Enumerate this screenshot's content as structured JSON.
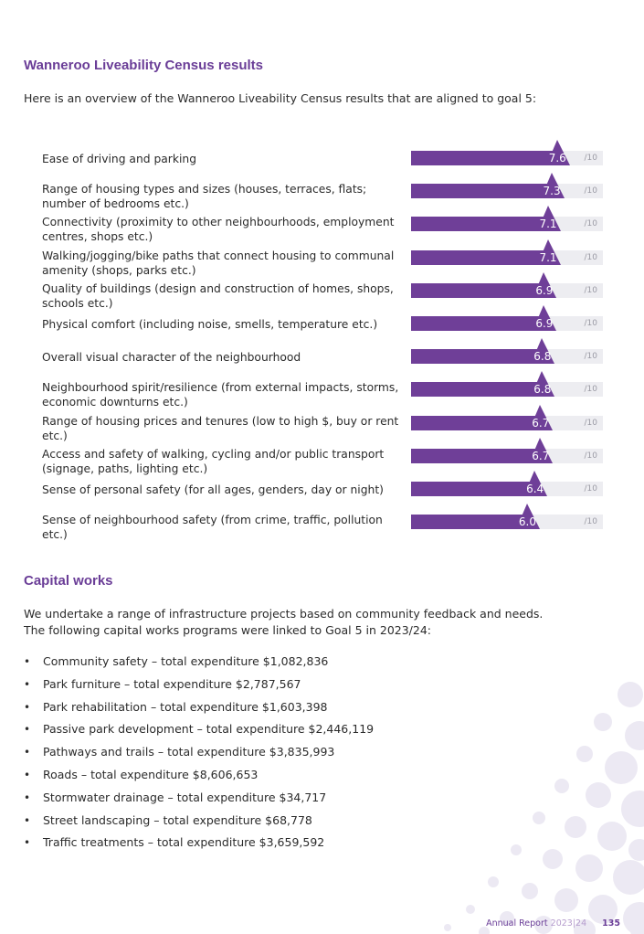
{
  "census": {
    "heading": "Wanneroo Liveability Census results",
    "intro": "Here is an overview of the Wanneroo Liveability Census results that are aligned to goal 5:",
    "max_label": "/10",
    "rows": [
      {
        "label": "Ease of driving and parking",
        "score": "7.6"
      },
      {
        "label": "Range of housing types and sizes (houses, terraces, flats; number of bedrooms etc.)",
        "score": "7.3"
      },
      {
        "label": "Connectivity (proximity to other neighbourhoods, employment centres, shops etc.)",
        "score": "7.1"
      },
      {
        "label": "Walking/jogging/bike paths that connect housing to communal amenity (shops, parks etc.)",
        "score": "7.1"
      },
      {
        "label": "Quality of buildings (design and construction of homes, shops, schools etc.)",
        "score": "6.9"
      },
      {
        "label": "Physical comfort (including noise, smells, temperature etc.)",
        "score": "6.9"
      },
      {
        "label": "Overall visual character of the neighbourhood",
        "score": "6.8"
      },
      {
        "label": "Neighbourhood spirit/resilience (from external impacts, storms, economic downturns etc.)",
        "score": "6.8"
      },
      {
        "label": "Range of housing prices and tenures (low to high $, buy or rent etc.)",
        "score": "6.7"
      },
      {
        "label": "Access and safety of walking, cycling and/or public transport (signage, paths, lighting etc.)",
        "score": "6.7"
      },
      {
        "label": "Sense of personal safety (for all ages, genders, day or night)",
        "score": "6.4"
      },
      {
        "label": "Sense of neighbourhood safety (from crime, traffic, pollution etc.)",
        "score": "6.0"
      }
    ]
  },
  "capital": {
    "heading": "Capital works",
    "intro_line1": "We undertake a range of infrastructure projects based on community feedback and needs.",
    "intro_line2": "The following capital works programs were linked to Goal 5 in 2023/24:",
    "items": [
      "Community safety – total expenditure $1,082,836",
      "Park furniture – total expenditure $2,787,567",
      "Park rehabilitation – total expenditure $1,603,398",
      "Passive park development – total expenditure $2,446,119",
      "Pathways and trails – total expenditure $3,835,993",
      "Roads – total expenditure $8,606,653",
      "Stormwater drainage – total expenditure $34,717",
      "Street landscaping – total expenditure $68,778",
      "Traffic treatments – total expenditure $3,659,592"
    ]
  },
  "footer": {
    "report": "Annual Report",
    "year": "2023|24",
    "page": "135"
  },
  "colors": {
    "accent": "#6f3f98",
    "track": "#ededf1",
    "decoration": "#ece9f3"
  }
}
